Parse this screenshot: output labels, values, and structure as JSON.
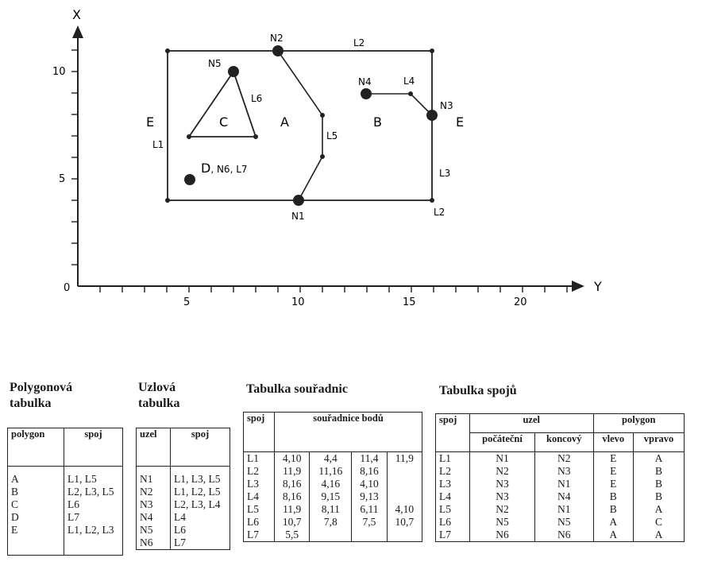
{
  "axes": {
    "x_axis_label": "Y",
    "y_axis_label": "X",
    "x_ticks": [
      "0",
      "5",
      "10",
      "15",
      "20"
    ],
    "y_ticks": [
      "5",
      "10"
    ]
  },
  "map_labels": {
    "areas": [
      "A",
      "B",
      "C",
      "D",
      "E",
      "E"
    ],
    "nodes": [
      "N1",
      "N2",
      "N3",
      "N4",
      "N5"
    ],
    "d_suffix": ", N6, L7",
    "lines": [
      "L1",
      "L2",
      "L2",
      "L3",
      "L4",
      "L5",
      "L6"
    ]
  },
  "polygon_table": {
    "title_line1": "Polygonová",
    "title_line2": "tabulka",
    "headers": [
      "polygon",
      "spoj"
    ],
    "rows": [
      [
        "A",
        "L1, L5"
      ],
      [
        "B",
        "L2, L3, L5"
      ],
      [
        "C",
        "L6"
      ],
      [
        "D",
        "L7"
      ],
      [
        "E",
        "L1, L2, L3"
      ]
    ]
  },
  "node_table": {
    "title_line1": "Uzlová",
    "title_line2": "tabulka",
    "headers": [
      "uzel",
      "spoj"
    ],
    "rows": [
      [
        "N1",
        "L1, L3, L5"
      ],
      [
        "N2",
        "L1, L2, L5"
      ],
      [
        "N3",
        "L2, L3, L4"
      ],
      [
        "N4",
        "L4"
      ],
      [
        "N5",
        "L6"
      ],
      [
        "N6",
        "L7"
      ]
    ]
  },
  "coord_table": {
    "title": "Tabulka souřadnic",
    "headers": [
      "spoj",
      "souřadnice bodů"
    ],
    "rows": [
      [
        "L1",
        "4,10",
        "4,4",
        "11,4",
        "11,9"
      ],
      [
        "L2",
        "11,9",
        "11,16",
        "8,16",
        ""
      ],
      [
        "L3",
        "8,16",
        "4,16",
        "4,10",
        ""
      ],
      [
        "L4",
        "8,16",
        "9,15",
        "9,13",
        ""
      ],
      [
        "L5",
        "11,9",
        "8,11",
        "6,11",
        "4,10"
      ],
      [
        "L6",
        "10,7",
        "7,8",
        "7,5",
        "10,7"
      ],
      [
        "L7",
        "5,5",
        "",
        "",
        ""
      ]
    ]
  },
  "link_table": {
    "title": "Tabulka spojů",
    "headers": {
      "spoj": "spoj",
      "uzel": "uzel",
      "polygon": "polygon",
      "start": "počáteční",
      "end": "koncový",
      "left": "vlevo",
      "right": "vpravo"
    },
    "rows": [
      [
        "L1",
        "N1",
        "N2",
        "E",
        "A"
      ],
      [
        "L2",
        "N2",
        "N3",
        "E",
        "B"
      ],
      [
        "L3",
        "N3",
        "N1",
        "E",
        "B"
      ],
      [
        "L4",
        "N3",
        "N4",
        "B",
        "B"
      ],
      [
        "L5",
        "N2",
        "N1",
        "B",
        "A"
      ],
      [
        "L6",
        "N5",
        "N5",
        "A",
        "C"
      ],
      [
        "L7",
        "N6",
        "N6",
        "A",
        "A"
      ]
    ]
  }
}
